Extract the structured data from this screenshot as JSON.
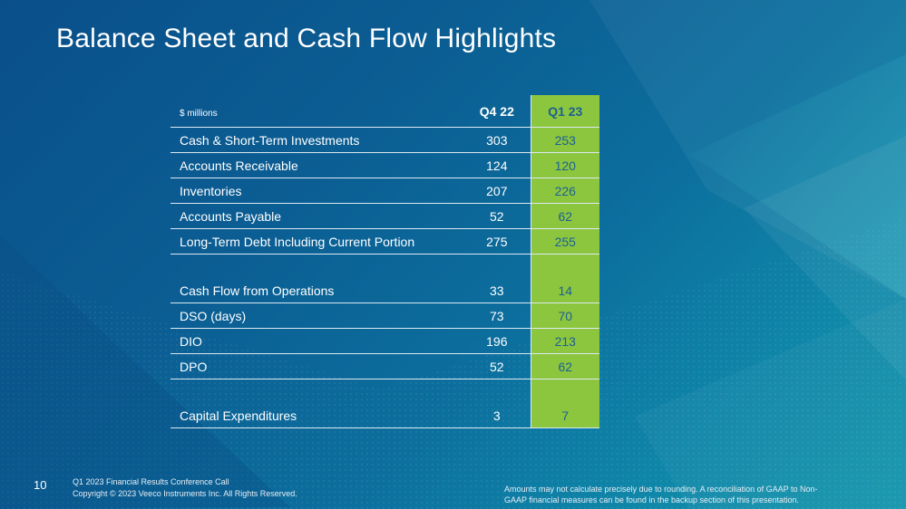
{
  "slide": {
    "title": "Balance Sheet and Cash Flow Highlights",
    "page_number": "10"
  },
  "table": {
    "unit_label": "$ millions",
    "columns": [
      "Q4 22",
      "Q1 23"
    ],
    "highlight_color": "#8cc63f",
    "rows": [
      {
        "label": "Cash & Short-Term Investments",
        "q4_22": "303",
        "q1_23": "253"
      },
      {
        "label": "Accounts Receivable",
        "q4_22": "124",
        "q1_23": "120"
      },
      {
        "label": "Inventories",
        "q4_22": "207",
        "q1_23": "226"
      },
      {
        "label": "Accounts Payable",
        "q4_22": "52",
        "q1_23": "62"
      },
      {
        "label": "Long-Term Debt Including Current Portion",
        "q4_22": "275",
        "q1_23": "255"
      },
      {
        "label": "Cash Flow from Operations",
        "q4_22": "33",
        "q1_23": "14"
      },
      {
        "label": "DSO (days)",
        "q4_22": "73",
        "q1_23": "70"
      },
      {
        "label": "DIO",
        "q4_22": "196",
        "q1_23": "213"
      },
      {
        "label": "DPO",
        "q4_22": "52",
        "q1_23": "62"
      },
      {
        "label": "Capital Expenditures",
        "q4_22": "3",
        "q1_23": "7"
      }
    ]
  },
  "footer": {
    "conference_line": "Q1 2023 Financial Results Conference Call",
    "copyright_line": "Copyright © 2023 Veeco Instruments Inc. All Rights Reserved.",
    "disclaimer_line1": "Amounts may not calculate precisely due to rounding.  A reconciliation of GAAP to Non-",
    "disclaimer_line2": "GAAP financial measures can be found in the backup section of this presentation."
  }
}
